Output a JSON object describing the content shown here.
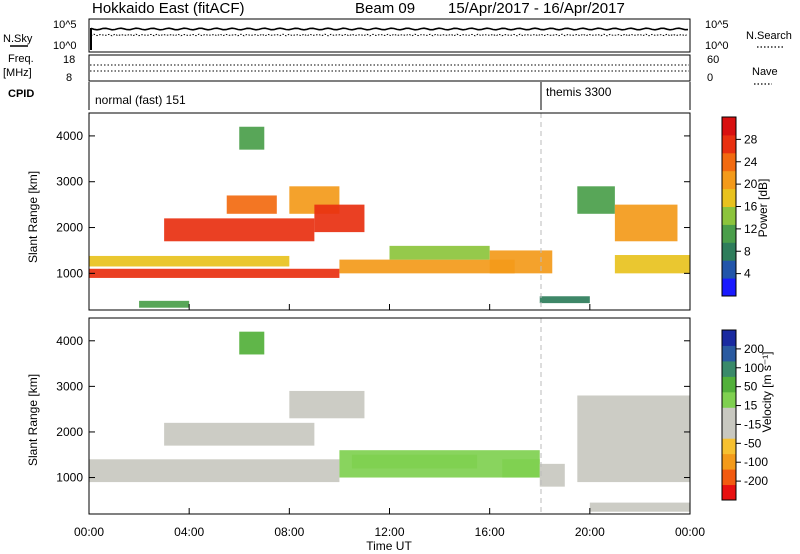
{
  "header": {
    "station": "Hokkaido East (fitACF)",
    "beam": "Beam 09",
    "date_range": "15/Apr/2017 - 16/Apr/2017"
  },
  "status_panels": {
    "nsky_label": "N.Sky",
    "nsearch_label": "N.Search",
    "left_ticks_top": [
      "10^5",
      "10^0"
    ],
    "right_ticks_top": [
      "10^5",
      "10^0"
    ],
    "freq_label_line1": "Freq.",
    "freq_label_line2": "[MHz]",
    "freq_ticks": [
      "18",
      "8"
    ],
    "nave_label": "Nave",
    "nave_ticks": [
      "60",
      "0"
    ],
    "cpid_label": "CPID",
    "cpid_1": "normal (fast) 151",
    "cpid_2": "themis 3300"
  },
  "colors": {
    "power_scale": [
      "#1a1aff",
      "#2255aa",
      "#2e7d5b",
      "#4a9e4a",
      "#8cc43c",
      "#e8c21e",
      "#f39a1a",
      "#f26a10",
      "#e83010",
      "#d81010"
    ],
    "velocity_scale": [
      "#e81010",
      "#f25a10",
      "#f39a1a",
      "#f6c030",
      "#c8c8c0",
      "#c8c8c0",
      "#7fd050",
      "#52b03a",
      "#3a8a6a",
      "#2a5aa0",
      "#1a2aa0"
    ]
  },
  "chart_data": [
    {
      "type": "heatmap",
      "panel": "power",
      "ylabel": "Slant Range [km]",
      "xlabel": "",
      "yticks": [
        "1000",
        "2000",
        "3000",
        "4000"
      ],
      "ylim": [
        200,
        4500
      ],
      "xticks": [],
      "colorbar": {
        "label": "Power [dB]",
        "ticks": [
          "4",
          "8",
          "12",
          "16",
          "20",
          "24",
          "28"
        ],
        "range": [
          0,
          32
        ]
      },
      "cells": [
        {
          "x0": 0,
          "x1": 8,
          "y0": 1150,
          "y1": 1380,
          "value": 18
        },
        {
          "x0": 0,
          "x1": 10,
          "y0": 900,
          "y1": 1100,
          "value": 26
        },
        {
          "x0": 10,
          "x1": 17,
          "y0": 1000,
          "y1": 1300,
          "value": 20
        },
        {
          "x0": 3,
          "x1": 9,
          "y0": 1700,
          "y1": 2200,
          "value": 27
        },
        {
          "x0": 5.5,
          "x1": 7.5,
          "y0": 2300,
          "y1": 2700,
          "value": 24
        },
        {
          "x0": 8,
          "x1": 10,
          "y0": 2300,
          "y1": 2900,
          "value": 22
        },
        {
          "x0": 9,
          "x1": 11,
          "y0": 1900,
          "y1": 2500,
          "value": 26
        },
        {
          "x0": 12,
          "x1": 16,
          "y0": 1300,
          "y1": 1600,
          "value": 14
        },
        {
          "x0": 16,
          "x1": 18.5,
          "y0": 1000,
          "y1": 1500,
          "value": 20
        },
        {
          "x0": 18,
          "x1": 20,
          "y0": 350,
          "y1": 500,
          "value": 8
        },
        {
          "x0": 19.5,
          "x1": 21,
          "y0": 2300,
          "y1": 2900,
          "value": 12
        },
        {
          "x0": 21,
          "x1": 23.5,
          "y0": 1700,
          "y1": 2500,
          "value": 22
        },
        {
          "x0": 21,
          "x1": 24,
          "y0": 1000,
          "y1": 1400,
          "value": 18
        },
        {
          "x0": 6,
          "x1": 7,
          "y0": 3700,
          "y1": 4200,
          "value": 12
        },
        {
          "x0": 2,
          "x1": 4,
          "y0": 250,
          "y1": 400,
          "value": 10
        }
      ]
    },
    {
      "type": "heatmap",
      "panel": "velocity",
      "ylabel": "Slant Range [km]",
      "xlabel": "Time UT",
      "yticks": [
        "1000",
        "2000",
        "3000",
        "4000"
      ],
      "ylim": [
        200,
        4500
      ],
      "xticks": [
        "00:00",
        "04:00",
        "08:00",
        "12:00",
        "16:00",
        "20:00",
        "00:00"
      ],
      "colorbar": {
        "label": "Velocity [m s⁻¹]",
        "ticks": [
          "-200",
          "-100",
          "-50",
          "-15",
          "15",
          "50",
          "100",
          "200"
        ],
        "range": [
          -250,
          250
        ]
      },
      "cells": [
        {
          "x0": 0,
          "x1": 10,
          "y0": 900,
          "y1": 1400,
          "value": 0
        },
        {
          "x0": 3,
          "x1": 9,
          "y0": 1700,
          "y1": 2200,
          "value": 0
        },
        {
          "x0": 8,
          "x1": 11,
          "y0": 2300,
          "y1": 2900,
          "value": 0
        },
        {
          "x0": 10,
          "x1": 18,
          "y0": 1000,
          "y1": 1600,
          "value": 40
        },
        {
          "x0": 10.5,
          "x1": 15.5,
          "y0": 1200,
          "y1": 1500,
          "value": 60
        },
        {
          "x0": 16.5,
          "x1": 18,
          "y0": 1000,
          "y1": 1400,
          "value": 30
        },
        {
          "x0": 18,
          "x1": 19,
          "y0": 800,
          "y1": 1300,
          "value": -45
        },
        {
          "x0": 19.5,
          "x1": 24,
          "y0": 900,
          "y1": 2800,
          "value": 0
        },
        {
          "x0": 6,
          "x1": 7,
          "y0": 3700,
          "y1": 4200,
          "value": 70
        },
        {
          "x0": 20,
          "x1": 24,
          "y0": 250,
          "y1": 450,
          "value": -30
        }
      ]
    }
  ]
}
